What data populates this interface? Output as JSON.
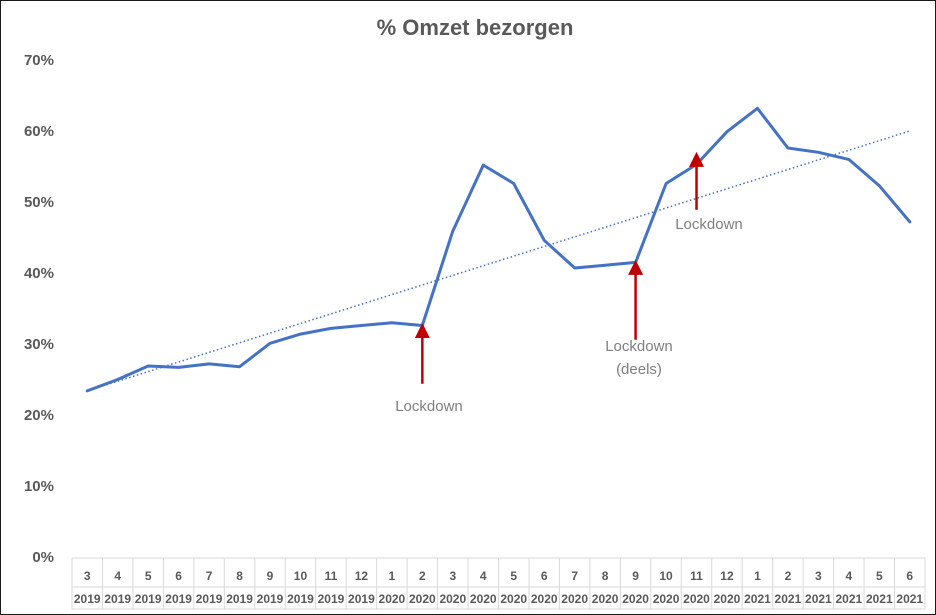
{
  "chart_data": {
    "type": "line",
    "title": "% Omzet bezorgen",
    "xlabel": "",
    "ylabel": "",
    "ylim": [
      0,
      70
    ],
    "y_ticks": [
      "0%",
      "10%",
      "20%",
      "30%",
      "40%",
      "50%",
      "60%",
      "70%"
    ],
    "y_tick_values": [
      0,
      10,
      20,
      30,
      40,
      50,
      60,
      70
    ],
    "grid": false,
    "legend": "none",
    "categories": [
      {
        "month": "3",
        "year": "2019"
      },
      {
        "month": "4",
        "year": "2019"
      },
      {
        "month": "5",
        "year": "2019"
      },
      {
        "month": "6",
        "year": "2019"
      },
      {
        "month": "7",
        "year": "2019"
      },
      {
        "month": "8",
        "year": "2019"
      },
      {
        "month": "9",
        "year": "2019"
      },
      {
        "month": "10",
        "year": "2019"
      },
      {
        "month": "11",
        "year": "2019"
      },
      {
        "month": "12",
        "year": "2019"
      },
      {
        "month": "1",
        "year": "2020"
      },
      {
        "month": "2",
        "year": "2020"
      },
      {
        "month": "3",
        "year": "2020"
      },
      {
        "month": "4",
        "year": "2020"
      },
      {
        "month": "5",
        "year": "2020"
      },
      {
        "month": "6",
        "year": "2020"
      },
      {
        "month": "7",
        "year": "2020"
      },
      {
        "month": "8",
        "year": "2020"
      },
      {
        "month": "9",
        "year": "2020"
      },
      {
        "month": "10",
        "year": "2020"
      },
      {
        "month": "11",
        "year": "2020"
      },
      {
        "month": "12",
        "year": "2020"
      },
      {
        "month": "1",
        "year": "2021"
      },
      {
        "month": "2",
        "year": "2021"
      },
      {
        "month": "3",
        "year": "2021"
      },
      {
        "month": "4",
        "year": "2021"
      },
      {
        "month": "5",
        "year": "2021"
      },
      {
        "month": "6",
        "year": "2021"
      }
    ],
    "series": [
      {
        "values": [
          23.4,
          25.0,
          26.9,
          26.7,
          27.2,
          26.8,
          30.1,
          31.4,
          32.2,
          32.6,
          33.0,
          32.6,
          45.9,
          55.2,
          52.6,
          44.6,
          40.7,
          41.1,
          41.5,
          52.6,
          55.3,
          59.9,
          63.2,
          57.6,
          57.0,
          56.0,
          52.3,
          47.2
        ],
        "color": "#4472c4"
      }
    ],
    "trendline": {
      "type": "linear",
      "color": "#4472c4",
      "style": "dotted",
      "start": 23.4,
      "end": 60.0
    },
    "annotations": [
      {
        "text": "Lockdown",
        "at_index": 11,
        "arrow_tip_value": 32.6,
        "arrow_tail_value": 24.4,
        "color": "#c00000"
      },
      {
        "lines": [
          "Lockdown",
          "(deels)"
        ],
        "at_index": 18,
        "arrow_tip_value": 41.5,
        "arrow_tail_value": 30.6,
        "color": "#c00000"
      },
      {
        "text": "Lockdown",
        "at_index": 20,
        "arrow_tip_value": 56.7,
        "arrow_tail_value": 48.9,
        "color": "#c00000"
      }
    ]
  }
}
